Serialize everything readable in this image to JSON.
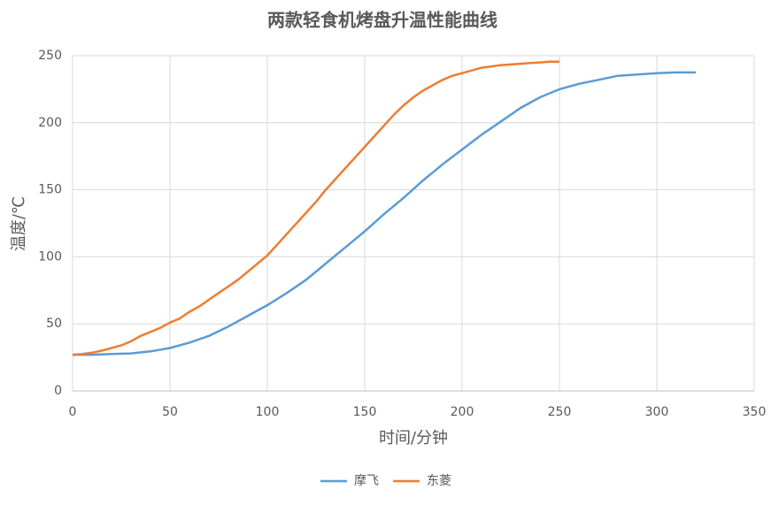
{
  "chart_data": {
    "type": "line",
    "title": "两款轻食机烤盘升温性能曲线",
    "x_label": "时间/分钟",
    "y_label": "温度/℃",
    "xlim": [
      0,
      350
    ],
    "xticks": [
      0,
      50,
      100,
      150,
      200,
      250,
      300,
      350
    ],
    "ylim": [
      0,
      250
    ],
    "yticks": [
      0,
      50,
      100,
      150,
      200,
      250
    ],
    "grid": true,
    "legend": "bottom",
    "series": [
      {
        "name": "摩飞",
        "color": "#5b9bd5",
        "x": [
          0,
          10,
          20,
          30,
          40,
          50,
          60,
          70,
          80,
          90,
          100,
          110,
          120,
          130,
          140,
          150,
          160,
          170,
          180,
          190,
          200,
          210,
          220,
          230,
          240,
          250,
          260,
          270,
          280,
          290,
          300,
          310,
          320
        ],
        "values": [
          27,
          27,
          27.5,
          28,
          29.5,
          32,
          36,
          41,
          48,
          56,
          64,
          73,
          83,
          95,
          107,
          119,
          132,
          144,
          157,
          169,
          180,
          191,
          201,
          211,
          219,
          225,
          229,
          232,
          235,
          236,
          237,
          237.5,
          237.5
        ]
      },
      {
        "name": "东菱",
        "color": "#ed7d31",
        "x": [
          0,
          5,
          10,
          15,
          20,
          25,
          30,
          35,
          40,
          45,
          50,
          55,
          60,
          65,
          70,
          75,
          80,
          85,
          90,
          95,
          100,
          105,
          110,
          115,
          120,
          125,
          130,
          135,
          140,
          145,
          150,
          155,
          160,
          165,
          170,
          175,
          180,
          185,
          190,
          195,
          200,
          205,
          210,
          215,
          220,
          225,
          230,
          235,
          240,
          245,
          250
        ],
        "values": [
          27,
          27.5,
          28.5,
          30,
          32,
          34,
          37,
          41,
          44,
          47,
          51,
          54,
          59,
          63,
          68,
          73,
          78,
          83,
          89,
          95,
          101,
          109,
          117,
          125,
          133,
          141,
          150,
          158,
          166,
          174,
          182,
          190,
          198,
          206,
          213,
          219,
          224,
          228,
          232,
          235,
          237,
          239,
          241,
          242,
          243,
          243.5,
          244,
          244.5,
          245,
          245.5,
          245.5
        ]
      }
    ]
  }
}
